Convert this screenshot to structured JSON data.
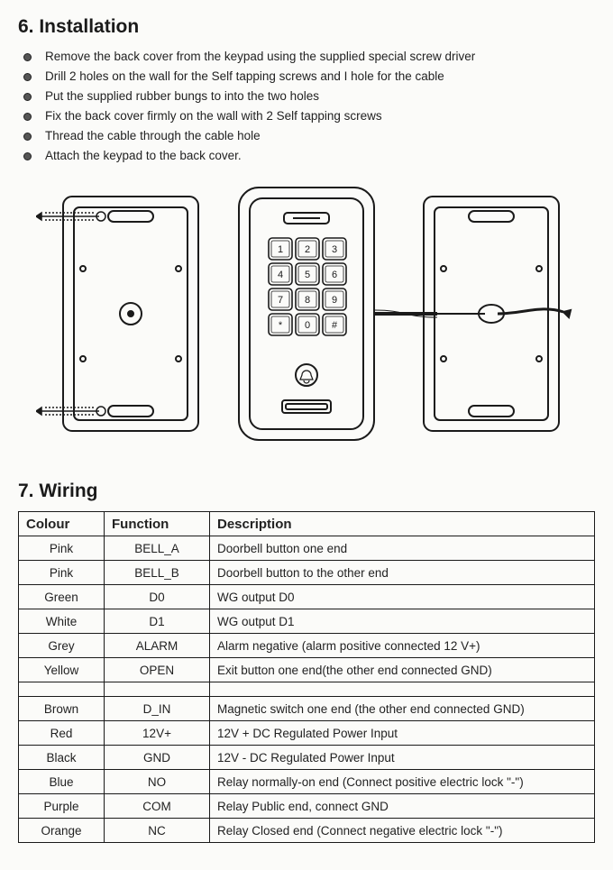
{
  "section6": {
    "heading": "6.  Installation",
    "steps": [
      "Remove the back cover from the keypad using the supplied special screw driver",
      "Drill 2 holes on the wall for the Self tapping screws and I hole for the cable",
      "Put the supplied rubber bungs to into the two holes",
      "Fix the back cover firmly on the wall with 2 Self tapping screws",
      "Thread the cable through the cable hole",
      "Attach the keypad to the back cover."
    ]
  },
  "diagram": {
    "keypad_keys": [
      "1",
      "2",
      "3",
      "4",
      "5",
      "6",
      "7",
      "8",
      "9",
      "*",
      "0",
      "#"
    ],
    "stroke": "#1a1a1a",
    "fill_bg": "#fbfbf9"
  },
  "section7": {
    "heading": "7.  Wiring",
    "table": {
      "columns": [
        "Colour",
        "Function",
        "Description"
      ],
      "rows": [
        [
          "Pink",
          "BELL_A",
          "Doorbell button one end"
        ],
        [
          "Pink",
          "BELL_B",
          "Doorbell button to the other end"
        ],
        [
          "Green",
          "D0",
          "WG output D0"
        ],
        [
          "White",
          "D1",
          "WG output D1"
        ],
        [
          "Grey",
          "ALARM",
          "Alarm negative (alarm positive connected 12 V+)"
        ],
        [
          "Yellow",
          "OPEN",
          "Exit button one end(the other end connected GND)"
        ]
      ],
      "rows2": [
        [
          "Brown",
          "D_IN",
          "Magnetic switch one end (the other end connected GND)"
        ],
        [
          "Red",
          "12V+",
          "12V + DC Regulated Power Input"
        ],
        [
          "Black",
          "GND",
          "12V - DC Regulated Power Input"
        ],
        [
          "Blue",
          "NO",
          "Relay normally-on end (Connect positive electric lock \"-\")"
        ],
        [
          "Purple",
          "COM",
          "Relay Public end, connect GND"
        ],
        [
          "Orange",
          "NC",
          "Relay Closed end (Connect negative electric lock \"-\")"
        ]
      ]
    }
  }
}
